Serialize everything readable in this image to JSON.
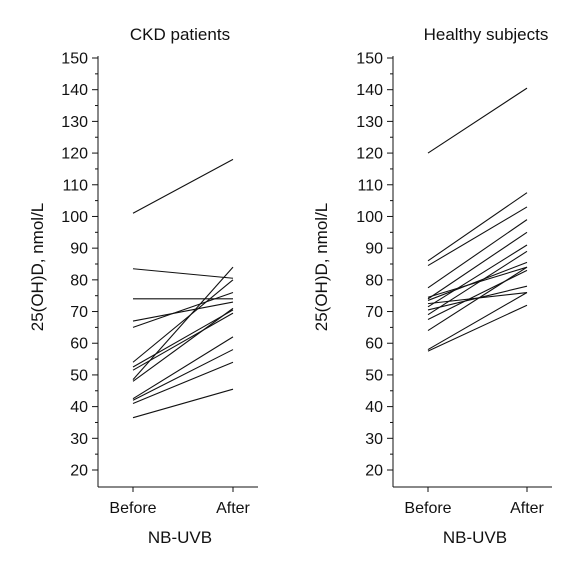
{
  "chart_data": [
    {
      "type": "line",
      "title": "CKD patients",
      "xlabel": "NB-UVB",
      "ylabel": "25(OH)D, nmol/L",
      "categories": [
        "Before",
        "After"
      ],
      "ylim": [
        20,
        150
      ],
      "yticks": [
        20,
        30,
        40,
        50,
        60,
        70,
        80,
        90,
        100,
        110,
        120,
        130,
        140,
        150
      ],
      "grid": false,
      "series": [
        {
          "values": [
            101,
            118
          ]
        },
        {
          "values": [
            83.5,
            80.5
          ]
        },
        {
          "values": [
            74,
            74
          ]
        },
        {
          "values": [
            67,
            73
          ]
        },
        {
          "values": [
            65,
            76
          ]
        },
        {
          "values": [
            54,
            80
          ]
        },
        {
          "values": [
            52.5,
            70.5
          ]
        },
        {
          "values": [
            51.5,
            69.5
          ]
        },
        {
          "values": [
            48.5,
            84
          ]
        },
        {
          "values": [
            48,
            71
          ]
        },
        {
          "values": [
            42.5,
            62
          ]
        },
        {
          "values": [
            42,
            58
          ]
        },
        {
          "values": [
            41,
            54
          ]
        },
        {
          "values": [
            36.5,
            45.5
          ]
        }
      ]
    },
    {
      "type": "line",
      "title": "Healthy subjects",
      "xlabel": "NB-UVB",
      "ylabel": "25(OH)D, nmol/L",
      "categories": [
        "Before",
        "After"
      ],
      "ylim": [
        20,
        150
      ],
      "yticks": [
        20,
        30,
        40,
        50,
        60,
        70,
        80,
        90,
        100,
        110,
        120,
        130,
        140,
        150
      ],
      "grid": false,
      "series": [
        {
          "values": [
            120,
            140.5
          ]
        },
        {
          "values": [
            86,
            107.5
          ]
        },
        {
          "values": [
            84.5,
            103
          ]
        },
        {
          "values": [
            77.5,
            99
          ]
        },
        {
          "values": [
            74.5,
            84
          ]
        },
        {
          "values": [
            74,
            95
          ]
        },
        {
          "values": [
            73.5,
            85.5
          ]
        },
        {
          "values": [
            72.5,
            76
          ]
        },
        {
          "values": [
            71.5,
            91
          ]
        },
        {
          "values": [
            70.5,
            78
          ]
        },
        {
          "values": [
            69,
            89
          ]
        },
        {
          "values": [
            67.5,
            83
          ]
        },
        {
          "values": [
            64,
            84
          ]
        },
        {
          "values": [
            58,
            76
          ]
        },
        {
          "values": [
            57.5,
            72
          ]
        }
      ]
    }
  ]
}
